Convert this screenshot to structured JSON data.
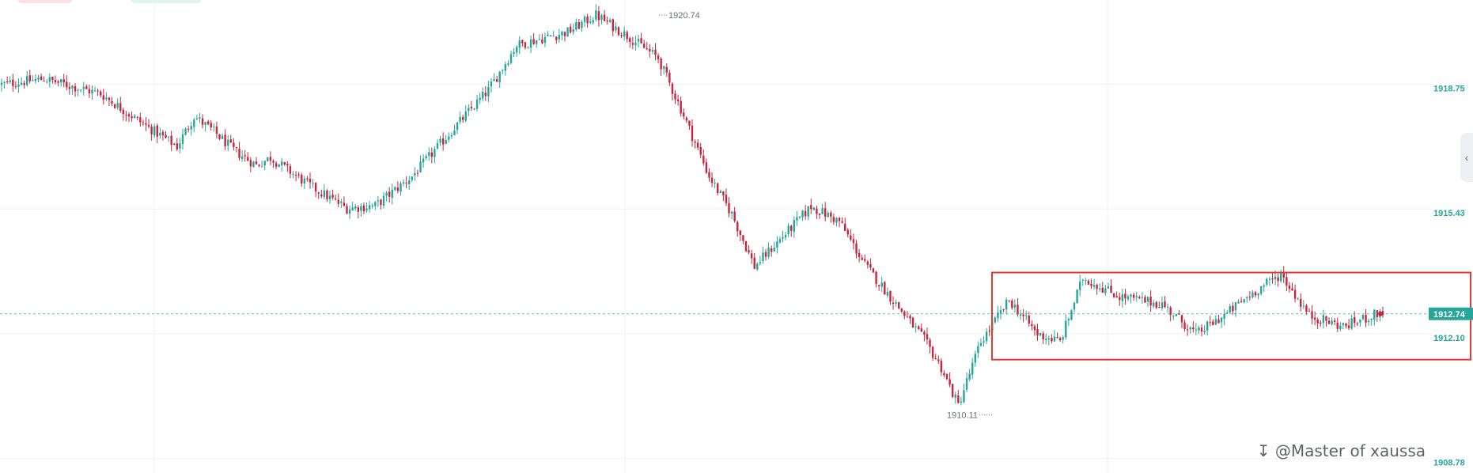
{
  "chart_data": {
    "type": "candlestick",
    "title": "",
    "y_axis": {
      "position": "right",
      "tick_labels": [
        "1918.75",
        "1915.43",
        "1912.10",
        "1908.78"
      ],
      "range": [
        1908.5,
        1921.1
      ]
    },
    "current_price": {
      "label": "1912.74",
      "value": 1912.74
    },
    "high_marker": {
      "label": "1920.74",
      "value": 1920.74
    },
    "low_marker": {
      "label": "1910.11",
      "value": 1910.11
    },
    "anchors": [
      [
        0,
        1918.85
      ],
      [
        15,
        1919.0
      ],
      [
        35,
        1918.6
      ],
      [
        50,
        1917.8
      ],
      [
        62,
        1917.2
      ],
      [
        68,
        1918.0
      ],
      [
        75,
        1917.6
      ],
      [
        82,
        1917.1
      ],
      [
        90,
        1916.7
      ],
      [
        95,
        1916.9
      ],
      [
        110,
        1916.1
      ],
      [
        122,
        1915.55
      ],
      [
        132,
        1915.62
      ],
      [
        145,
        1916.4
      ],
      [
        160,
        1917.7
      ],
      [
        172,
        1918.7
      ],
      [
        182,
        1919.9
      ],
      [
        200,
        1920.25
      ],
      [
        210,
        1920.7
      ],
      [
        222,
        1920.1
      ],
      [
        232,
        1919.55
      ],
      [
        240,
        1918.2
      ],
      [
        250,
        1916.4
      ],
      [
        258,
        1915.4
      ],
      [
        266,
        1914.0
      ],
      [
        276,
        1914.8
      ],
      [
        286,
        1915.6
      ],
      [
        296,
        1915.2
      ],
      [
        305,
        1914.05
      ],
      [
        316,
        1913.0
      ],
      [
        326,
        1912.05
      ],
      [
        332,
        1911.3
      ],
      [
        338,
        1910.3
      ],
      [
        346,
        1912.0
      ],
      [
        356,
        1913.1
      ],
      [
        366,
        1912.2
      ],
      [
        374,
        1912.0
      ],
      [
        382,
        1913.7
      ],
      [
        395,
        1913.2
      ],
      [
        410,
        1913.0
      ],
      [
        422,
        1912.2
      ],
      [
        432,
        1912.7
      ],
      [
        442,
        1913.3
      ],
      [
        452,
        1913.8
      ],
      [
        462,
        1912.7
      ],
      [
        474,
        1912.4
      ],
      [
        488,
        1912.8
      ]
    ],
    "series_colors": {
      "up": "#26a69a",
      "down": "#c8243a"
    },
    "highlight_box": {
      "color": "#e53935",
      "value_top": 1913.84,
      "value_bottom": 1911.52
    },
    "grid": true
  },
  "watermark": "↧ @Master of xaussa",
  "toggle_icon": "chevron-left-icon",
  "toggle_glyph": "‹"
}
